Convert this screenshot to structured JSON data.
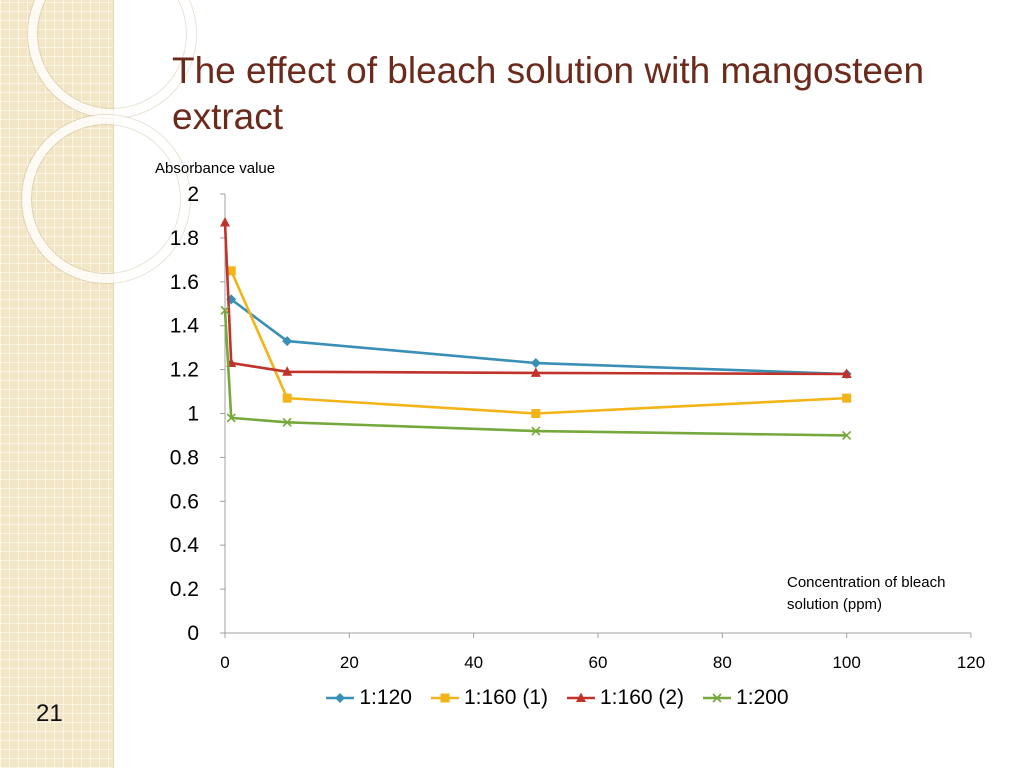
{
  "slide": {
    "title": "The effect of bleach solution with mangosteen extract",
    "number": "21"
  },
  "colors": {
    "title": "#6b2a1b",
    "strip": "#f3e6c6"
  },
  "chart_data": {
    "type": "line",
    "ylabel": "Absorbance value",
    "xlabel": "Concentration of bleach solution (ppm)",
    "xlim": [
      0,
      120
    ],
    "ylim": [
      0,
      2
    ],
    "xticks": [
      "0",
      "20",
      "40",
      "60",
      "80",
      "100",
      "120"
    ],
    "yticks": [
      "0",
      "0.2",
      "0.4",
      "0.6",
      "0.8",
      "1",
      "1.2",
      "1.4",
      "1.6",
      "1.8",
      "2"
    ],
    "grid": false,
    "legend_position": "bottom",
    "series": [
      {
        "name": "1:120",
        "color": "#3a8fb7",
        "marker": "diamond",
        "x": [
          1,
          10,
          50,
          100
        ],
        "y": [
          1.52,
          1.33,
          1.23,
          1.18
        ]
      },
      {
        "name": "1:160 (1)",
        "color": "#f2b418",
        "marker": "square",
        "x": [
          1,
          10,
          50,
          100
        ],
        "y": [
          1.65,
          1.07,
          1.0,
          1.07
        ]
      },
      {
        "name": "1:160 (2)",
        "color": "#c0332b",
        "marker": "triangle",
        "x": [
          0,
          1,
          10,
          50,
          100
        ],
        "y": [
          1.87,
          1.23,
          1.19,
          1.185,
          1.18
        ]
      },
      {
        "name": "1:200",
        "color": "#76a83c",
        "marker": "x",
        "x": [
          0,
          1,
          10,
          50,
          100
        ],
        "y": [
          1.47,
          0.98,
          0.96,
          0.92,
          0.9
        ]
      }
    ]
  }
}
